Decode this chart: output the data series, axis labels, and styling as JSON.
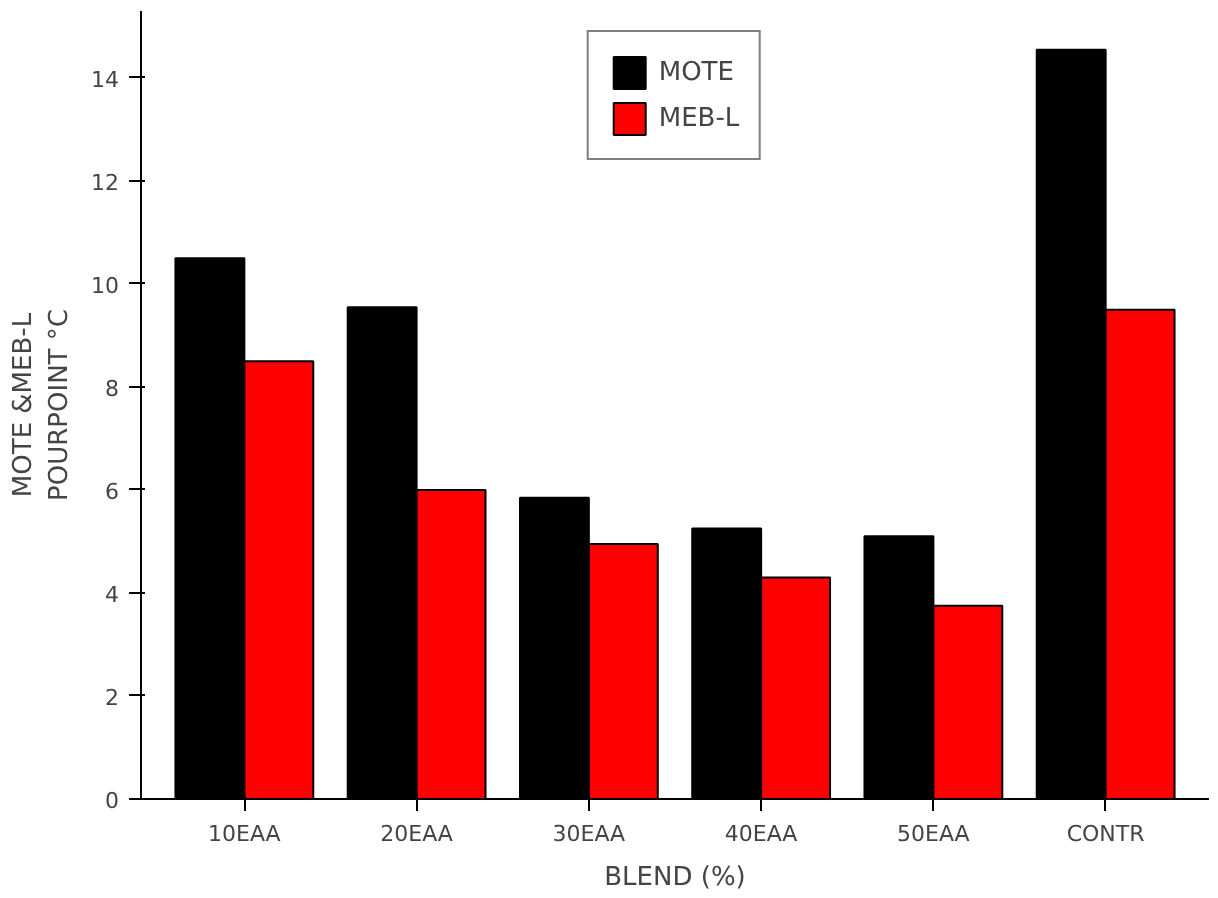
{
  "chart_data": {
    "type": "bar",
    "xlabel": "BLEND (%)",
    "ylabel": "MOTE &MEB-L\nPOURPOINT °C",
    "categories": [
      "10EAA",
      "20EAA",
      "30EAA",
      "40EAA",
      "50EAA",
      "CONTR"
    ],
    "series": [
      {
        "name": "MOTE",
        "color": "#000000",
        "values": [
          10.5,
          9.55,
          5.85,
          5.25,
          5.1,
          14.55
        ]
      },
      {
        "name": "MEB-L",
        "color": "#ff0000",
        "values": [
          8.5,
          6.0,
          4.95,
          4.3,
          3.75,
          9.5
        ]
      }
    ],
    "ylim": [
      0,
      15.3
    ],
    "yticks": [
      0,
      2,
      4,
      6,
      8,
      10,
      12,
      14
    ],
    "grid": false,
    "legend": "top"
  }
}
